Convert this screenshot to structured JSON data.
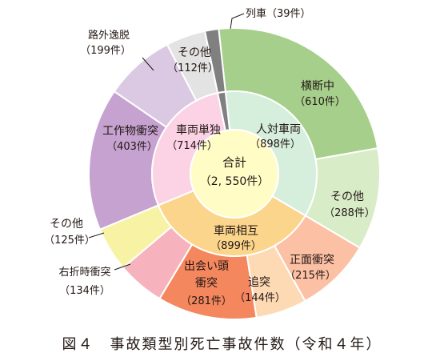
{
  "chart_data": {
    "type": "pie",
    "title": "",
    "total": {
      "label": "合計",
      "value": "（2, 550件）"
    },
    "inner": [
      {
        "name": "人対車両",
        "count": 898,
        "count_label": "（898件）",
        "color": "#d6eedc"
      },
      {
        "name": "車両相互",
        "count": 899,
        "count_label": "（899件）",
        "color": "#fbd58c"
      },
      {
        "name": "車両単独",
        "count": 714,
        "count_label": "（714件）",
        "color": "#fbd3e4"
      },
      {
        "name": "列車",
        "count": 39,
        "count_label": "",
        "color": "#808080"
      }
    ],
    "outer": [
      {
        "name": "横断中",
        "count": 610,
        "count_label": "（610件）",
        "color": "#a6cf8b"
      },
      {
        "name": "その他",
        "count": 288,
        "count_label": "（288件）",
        "color": "#d8ecc8"
      },
      {
        "name": "正面衝突",
        "count": 215,
        "count_label": "（215件）",
        "color": "#fcc0a4"
      },
      {
        "name": "追突",
        "count": 144,
        "count_label": "（144件）",
        "color": "#fdd9b4"
      },
      {
        "name": "出会い頭衝突",
        "count": 281,
        "count_label": "（281件）",
        "color": "#f4875d"
      },
      {
        "name": "右折時衝突",
        "count": 134,
        "count_label": "（134件）",
        "color": "#f6b3bd"
      },
      {
        "name": "その他",
        "count": 125,
        "count_label": "（125件）",
        "color": "#f8f3a4"
      },
      {
        "name": "工作物衝突",
        "count": 403,
        "count_label": "（403件）",
        "color": "#c6a2d0"
      },
      {
        "name": "路外逸脱",
        "count": 199,
        "count_label": "（199件）",
        "color": "#dbc9e3"
      },
      {
        "name": "その他",
        "count": 112,
        "count_label": "（112件）",
        "color": "#e3e3e3"
      },
      {
        "name": "列車",
        "count": 39,
        "count_label": "（39件）",
        "color": "#808080"
      }
    ]
  },
  "caption": "図４　事故類型別死亡事故件数（令和４年）"
}
